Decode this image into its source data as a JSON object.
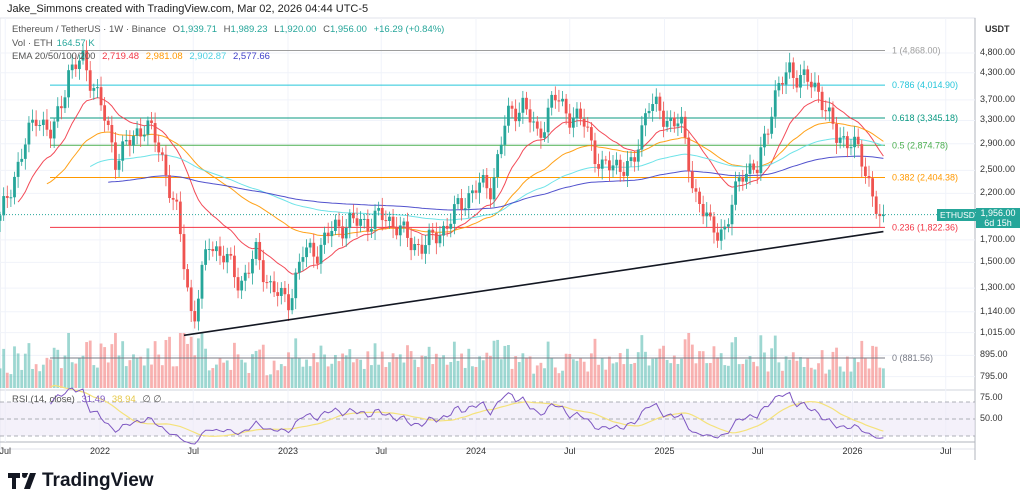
{
  "credit": "Jake_Simmons created with TradingView.com, Mar 02, 2026 04:44 UTC-5",
  "legend": {
    "symbol": "Ethereum / TetherUS · 1W · Binance",
    "o_label": "O",
    "o": "1,939.71",
    "h_label": "H",
    "h": "1,989.23",
    "l_label": "L",
    "l": "1,920.00",
    "c_label": "C",
    "c": "1,956.00",
    "change": "+16.29 (+0.84%)",
    "vol_label": "Vol · ETH",
    "vol": "164.57 K",
    "ema_label": "EMA 20/50/100/200",
    "ema20": "2,719.48",
    "ema50": "2,981.08",
    "ema100": "2,902.87",
    "ema200": "2,577.66",
    "rsi_label": "RSI (14, close)",
    "rsi": "31.49",
    "rsi_ma": "38.94",
    "rsi_icons": "∅ ∅"
  },
  "axis": {
    "currency": "USDT",
    "symbol_tag": "ETHUSDT",
    "last_price": "1,956.00",
    "countdown": "6d 15h"
  },
  "colors": {
    "up": "#26a69a",
    "down": "#ef5350",
    "ema20": "#f23645",
    "ema50": "#ff9800",
    "ema100": "#5ee0e6",
    "ema200": "#3f3fc8",
    "rsi": "#7e57c2",
    "rsi_ma": "#f5e27a"
  },
  "brand": "TradingView",
  "chart_data": {
    "type": "candlestick",
    "scale": "log",
    "timeframe": "1W",
    "y_ticks": [
      4800,
      4300,
      3700,
      3300,
      2900,
      2500,
      2200,
      1700,
      1500,
      1300,
      1140,
      1015,
      895,
      795
    ],
    "y_tick_labels": [
      "4,800.00",
      "4,300.00",
      "3,700.00",
      "3,300.00",
      "2,900.00",
      "2,500.00",
      "2,200.00",
      "1,700.00",
      "1,500.00",
      "1,300.00",
      "1,140.00",
      "1,015.00",
      "895.00",
      "795.00"
    ],
    "x_tick_labels": [
      {
        "d": "2021-07-01",
        "t": "Jul"
      },
      {
        "d": "2022-01-01",
        "t": "2022"
      },
      {
        "d": "2022-07-01",
        "t": "Jul"
      },
      {
        "d": "2023-01-01",
        "t": "2023"
      },
      {
        "d": "2023-07-01",
        "t": "Jul"
      },
      {
        "d": "2024-01-01",
        "t": "2024"
      },
      {
        "d": "2024-07-01",
        "t": "Jul"
      },
      {
        "d": "2025-01-01",
        "t": "2025"
      },
      {
        "d": "2025-07-01",
        "t": "Jul"
      },
      {
        "d": "2026-01-01",
        "t": "2026"
      },
      {
        "d": "2026-07-01",
        "t": "Jul"
      }
    ],
    "rsi_ticks": [
      {
        "v": 75,
        "t": "75.00"
      },
      {
        "v": 50,
        "t": "50.00"
      }
    ],
    "monthly_closes": [
      [
        "2021-06-21",
        1900
      ],
      [
        "2021-07-31",
        2700
      ],
      [
        "2021-08-31",
        3430
      ],
      [
        "2021-09-30",
        3000
      ],
      [
        "2021-10-31",
        4290
      ],
      [
        "2021-11-30",
        4630
      ],
      [
        "2021-12-31",
        3680
      ],
      [
        "2022-01-31",
        2690
      ],
      [
        "2022-02-28",
        2920
      ],
      [
        "2022-03-31",
        3280
      ],
      [
        "2022-04-30",
        2730
      ],
      [
        "2022-05-31",
        1940
      ],
      [
        "2022-06-30",
        1070
      ],
      [
        "2022-07-31",
        1680
      ],
      [
        "2022-08-31",
        1550
      ],
      [
        "2022-09-30",
        1330
      ],
      [
        "2022-10-31",
        1570
      ],
      [
        "2022-11-30",
        1300
      ],
      [
        "2022-12-31",
        1196
      ],
      [
        "2023-01-31",
        1585
      ],
      [
        "2023-02-28",
        1605
      ],
      [
        "2023-03-31",
        1820
      ],
      [
        "2023-04-30",
        1870
      ],
      [
        "2023-05-31",
        1875
      ],
      [
        "2023-06-30",
        1935
      ],
      [
        "2023-07-31",
        1855
      ],
      [
        "2023-08-31",
        1645
      ],
      [
        "2023-09-30",
        1670
      ],
      [
        "2023-10-31",
        1815
      ],
      [
        "2023-11-30",
        2050
      ],
      [
        "2023-12-31",
        2280
      ],
      [
        "2024-01-31",
        2280
      ],
      [
        "2024-02-29",
        3340
      ],
      [
        "2024-03-31",
        3650
      ],
      [
        "2024-04-30",
        3010
      ],
      [
        "2024-05-31",
        3760
      ],
      [
        "2024-06-30",
        3430
      ],
      [
        "2024-07-31",
        3230
      ],
      [
        "2024-08-31",
        2510
      ],
      [
        "2024-09-30",
        2600
      ],
      [
        "2024-10-31",
        2515
      ],
      [
        "2024-11-30",
        3700
      ],
      [
        "2024-12-31",
        3330
      ],
      [
        "2025-01-31",
        3300
      ],
      [
        "2025-02-28",
        2230
      ],
      [
        "2025-03-31",
        1820
      ],
      [
        "2025-04-30",
        1790
      ],
      [
        "2025-05-31",
        2530
      ],
      [
        "2025-06-30",
        2490
      ],
      [
        "2025-07-31",
        3700
      ],
      [
        "2025-08-31",
        4390
      ],
      [
        "2025-09-30",
        4140
      ],
      [
        "2025-10-31",
        3850
      ],
      [
        "2025-11-30",
        2990
      ],
      [
        "2025-12-31",
        2970
      ],
      [
        "2026-01-31",
        2400
      ],
      [
        "2026-02-23",
        1939.71
      ],
      [
        "2026-03-02",
        1956
      ]
    ],
    "fib_levels": [
      {
        "ratio": "1",
        "price": 4868,
        "label": "1 (4,868.00)",
        "color": "#9e9e9e"
      },
      {
        "ratio": "0.786",
        "price": 4014.9,
        "label": "0.786 (4,014.90)",
        "color": "#26c6da"
      },
      {
        "ratio": "0.618",
        "price": 3345.18,
        "label": "0.618 (3,345.18)",
        "color": "#089981"
      },
      {
        "ratio": "0.5",
        "price": 2874.78,
        "label": "0.5 (2,874.78)",
        "color": "#4caf50"
      },
      {
        "ratio": "0.382",
        "price": 2404.38,
        "label": "0.382 (2,404.38)",
        "color": "#ff9800"
      },
      {
        "ratio": "0.236",
        "price": 1822.36,
        "label": "0.236 (1,822.36)",
        "color": "#f23645"
      },
      {
        "ratio": "0",
        "price": 881.56,
        "label": "0 (881.56)",
        "color": "#787b86"
      }
    ],
    "trendline": [
      {
        "d": "2022-06-13",
        "p": 1000
      },
      {
        "d": "2026-03-02",
        "p": 1780
      }
    ]
  }
}
